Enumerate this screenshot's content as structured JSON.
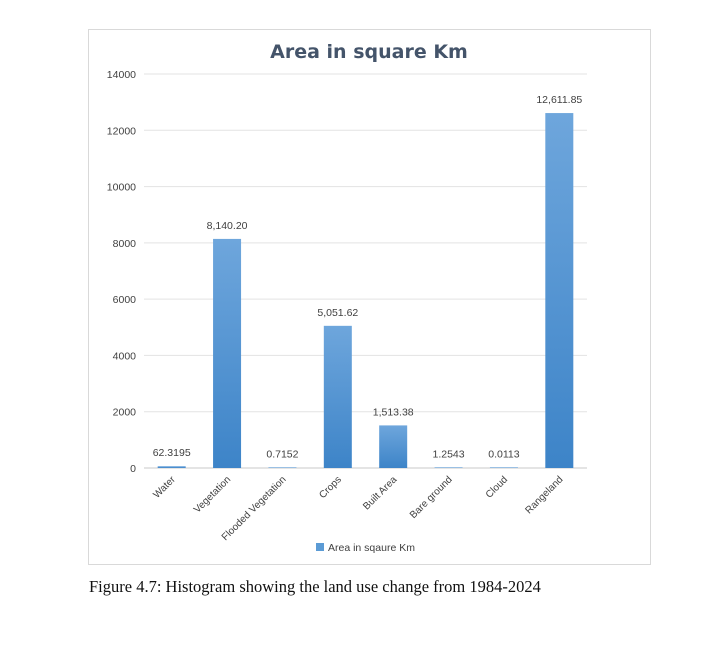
{
  "chart_data": {
    "type": "bar",
    "title": "Area in square Km",
    "categories": [
      "Water",
      "Vegetation",
      "Flooded Vegetation",
      "Crops",
      "Built Area",
      "Bare ground",
      "Cloud",
      "Rangeland"
    ],
    "series": [
      {
        "name": "Area in sqaure Km",
        "values": [
          62.3195,
          8140.2,
          0.7152,
          5051.62,
          1513.38,
          1.2543,
          0.0113,
          12611.85
        ],
        "data_labels": [
          "62.3195",
          "8,140.20",
          "0.7152",
          "5,051.62",
          "1,513.38",
          "1.2543",
          "0.0113",
          "12,611.85"
        ]
      }
    ],
    "ylim": [
      0,
      14000
    ],
    "yticks": [
      "0",
      "2000",
      "4000",
      "6000",
      "8000",
      "10000",
      "12000",
      "14000"
    ],
    "grid": true,
    "legend_position": "bottom",
    "bar_color": "#5b9bd5"
  },
  "caption": "Figure 4.7: Histogram showing the land use change from 1984-2024"
}
